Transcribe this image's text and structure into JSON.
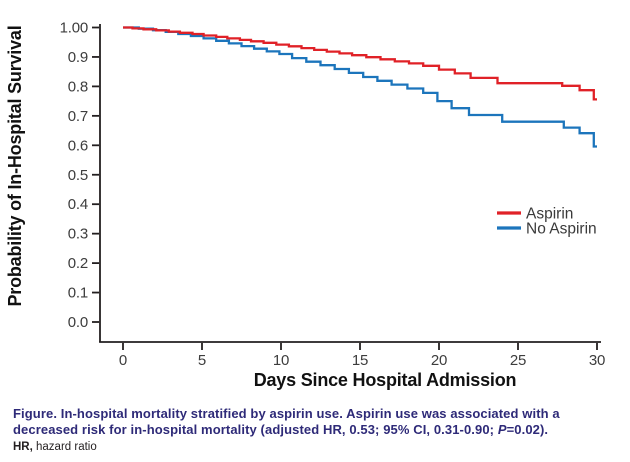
{
  "figure": {
    "y_axis_title": "Probability of In-Hospital Survival",
    "x_axis_title": "Days Since Hospital Admission"
  },
  "legend": {
    "items": [
      {
        "label": "Aspirin",
        "color": "#e02127"
      },
      {
        "label": "No Aspirin",
        "color": "#1c75bc"
      }
    ]
  },
  "caption": {
    "line1": "Figure. In-hospital mortality stratified by aspirin use. Aspirin use was associated with a",
    "line2_pre": "decreased risk for in-hospital mortality (adjusted HR, 0.53; 95% CI, 0.31-0.90; ",
    "line2_italic": "P",
    "line2_post": "=0.02).",
    "footnote_bold": "HR,",
    "footnote_rest": " hazard ratio"
  },
  "chart_data": {
    "type": "line",
    "subtype": "kaplan-meier-step-survival",
    "title": "",
    "xlabel": "Days Since Hospital Admission",
    "ylabel": "Probability of In-Hospital Survival",
    "xlim": [
      0,
      30
    ],
    "ylim": [
      0.0,
      1.0
    ],
    "grid": false,
    "legend_position": "right-center",
    "x_ticks": [
      {
        "value": 0,
        "label": "0"
      },
      {
        "value": 5,
        "label": "5"
      },
      {
        "value": 10,
        "label": "10"
      },
      {
        "value": 15,
        "label": "15"
      },
      {
        "value": 20,
        "label": "20"
      },
      {
        "value": 25,
        "label": "25"
      },
      {
        "value": 30,
        "label": "30"
      }
    ],
    "y_ticks": [
      {
        "value": 1.0,
        "label": "1.00"
      },
      {
        "value": 0.9,
        "label": "0.9"
      },
      {
        "value": 0.8,
        "label": "0.8"
      },
      {
        "value": 0.7,
        "label": "0.7"
      },
      {
        "value": 0.6,
        "label": "0.6"
      },
      {
        "value": 0.5,
        "label": "0.5"
      },
      {
        "value": 0.4,
        "label": "0.4"
      },
      {
        "value": 0.3,
        "label": "0.3"
      },
      {
        "value": 0.2,
        "label": "0.2"
      },
      {
        "value": 0.1,
        "label": "0.1"
      },
      {
        "value": 0.0,
        "label": "0.0"
      }
    ],
    "series": [
      {
        "name": "No Aspirin",
        "color": "#1c75bc",
        "points": [
          [
            0,
            1.0
          ],
          [
            1.0,
            0.996
          ],
          [
            1.9,
            0.991
          ],
          [
            2.7,
            0.985
          ],
          [
            3.5,
            0.978
          ],
          [
            4.3,
            0.971
          ],
          [
            5.1,
            0.963
          ],
          [
            5.9,
            0.955
          ],
          [
            6.7,
            0.946
          ],
          [
            7.5,
            0.937
          ],
          [
            8.3,
            0.928
          ],
          [
            9.1,
            0.919
          ],
          [
            9.9,
            0.91
          ],
          [
            10.7,
            0.896
          ],
          [
            11.6,
            0.884
          ],
          [
            12.5,
            0.872
          ],
          [
            13.4,
            0.859
          ],
          [
            14.3,
            0.846
          ],
          [
            15.2,
            0.832
          ],
          [
            16.1,
            0.819
          ],
          [
            17.0,
            0.806
          ],
          [
            18.0,
            0.793
          ],
          [
            19.0,
            0.778
          ],
          [
            19.9,
            0.75
          ],
          [
            20.8,
            0.726
          ],
          [
            21.9,
            0.703
          ],
          [
            24.0,
            0.68
          ],
          [
            27.9,
            0.66
          ],
          [
            28.9,
            0.641
          ],
          [
            29.8,
            0.596
          ],
          [
            30,
            0.596
          ]
        ]
      },
      {
        "name": "Aspirin",
        "color": "#e02127",
        "points": [
          [
            0,
            1.0
          ],
          [
            0.6,
            0.997
          ],
          [
            1.3,
            0.994
          ],
          [
            2.1,
            0.99
          ],
          [
            2.9,
            0.986
          ],
          [
            3.6,
            0.982
          ],
          [
            4.4,
            0.978
          ],
          [
            5.1,
            0.973
          ],
          [
            5.9,
            0.968
          ],
          [
            6.6,
            0.963
          ],
          [
            7.4,
            0.958
          ],
          [
            8.1,
            0.953
          ],
          [
            8.9,
            0.948
          ],
          [
            9.7,
            0.942
          ],
          [
            10.5,
            0.936
          ],
          [
            11.3,
            0.93
          ],
          [
            12.1,
            0.924
          ],
          [
            12.9,
            0.918
          ],
          [
            13.7,
            0.912
          ],
          [
            14.5,
            0.906
          ],
          [
            15.4,
            0.899
          ],
          [
            16.3,
            0.892
          ],
          [
            17.2,
            0.885
          ],
          [
            18.1,
            0.878
          ],
          [
            19.0,
            0.87
          ],
          [
            20.0,
            0.857
          ],
          [
            21.0,
            0.844
          ],
          [
            22.0,
            0.829
          ],
          [
            23.7,
            0.811
          ],
          [
            27.8,
            0.802
          ],
          [
            28.9,
            0.787
          ],
          [
            29.8,
            0.756
          ],
          [
            30,
            0.756
          ]
        ]
      }
    ]
  }
}
